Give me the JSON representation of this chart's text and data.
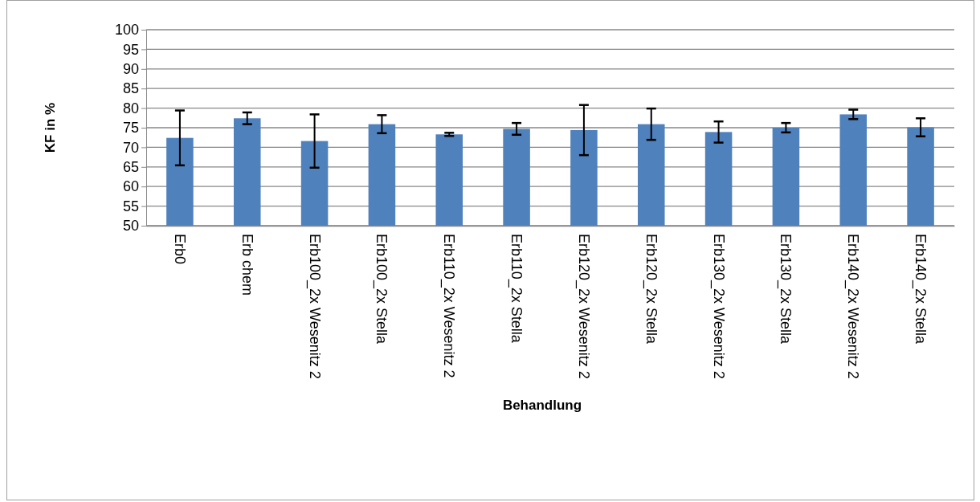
{
  "chart_data": {
    "type": "bar",
    "xlabel": "Behandlung",
    "ylabel": "KF in %",
    "categories": [
      "Erb0",
      "Erb chem",
      "Erb100_2x Wesenitz 2",
      "Erb100_2x Stella",
      "Erb110_2x Wesenitz 2",
      "Erb110_2x Stella",
      "Erb120_2x Wesenitz 2",
      "Erb120_2x Stella",
      "Erb130_2x Wesenitz 2",
      "Erb130_2x Stella",
      "Erb140_2x Wesenitz 2",
      "Erb140_2x Stella"
    ],
    "values": [
      72.4,
      77.4,
      71.6,
      75.9,
      73.3,
      74.7,
      74.4,
      75.9,
      73.9,
      75.0,
      78.4,
      75.1
    ],
    "errors": [
      7,
      1.5,
      6.8,
      2.3,
      0.4,
      1.5,
      6.4,
      4,
      2.7,
      1.2,
      1.2,
      2.3
    ],
    "color": "#4f81bd",
    "ylim": [
      50,
      100
    ],
    "yticks": [
      50,
      55,
      60,
      65,
      70,
      75,
      80,
      85,
      90,
      95,
      100
    ],
    "grid": "y"
  }
}
